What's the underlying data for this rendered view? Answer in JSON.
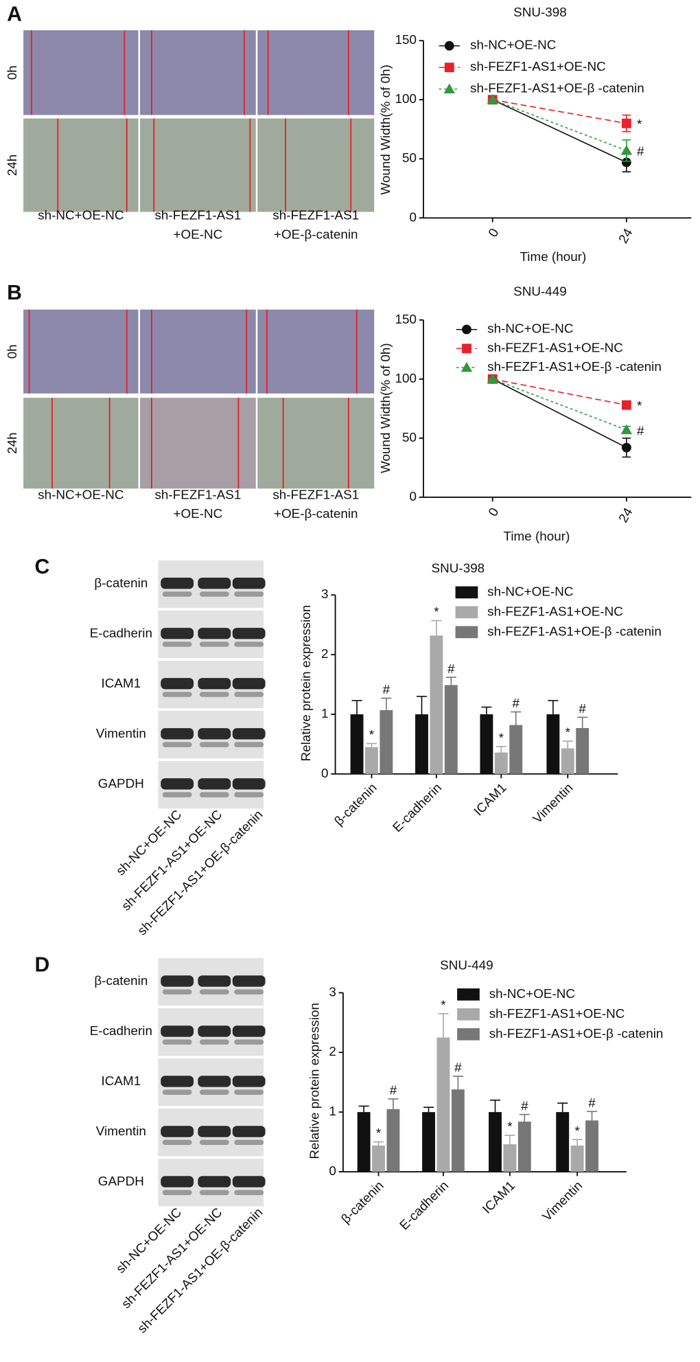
{
  "panels": [
    {
      "label": "A",
      "micro_rows": [
        "0h",
        "24h"
      ],
      "micro_captions": [
        [
          "sh-NC+OE-NC"
        ],
        [
          "sh-FEZF1-AS1",
          "+OE-NC"
        ],
        [
          "sh-FEZF1-AS1",
          "+OE-β-catenin"
        ]
      ]
    },
    {
      "label": "B",
      "micro_rows": [
        "0h",
        "24h"
      ],
      "micro_captions": [
        [
          "sh-NC+OE-NC"
        ],
        [
          "sh-FEZF1-AS1",
          "+OE-NC"
        ],
        [
          "sh-FEZF1-AS1",
          "+OE-β-catenin"
        ]
      ]
    },
    {
      "label": "C",
      "blot_proteins": [
        "β-catenin",
        "E-cadherin",
        "ICAM1",
        "Vimentin",
        "GAPDH"
      ],
      "blot_lanes": [
        "sh-NC+OE-NC",
        "sh-FEZF1-AS1+OE-NC",
        "sh-FEZF1-AS1+OE-β-catenin"
      ]
    },
    {
      "label": "D",
      "blot_proteins": [
        "β-catenin",
        "E-cadherin",
        "ICAM1",
        "Vimentin",
        "GAPDH"
      ],
      "blot_lanes": [
        "sh-NC+OE-NC",
        "sh-FEZF1-AS1+OE-NC",
        "sh-FEZF1-AS1+OE-β-catenin"
      ]
    }
  ],
  "chart_data": [
    {
      "type": "line",
      "title": "SNU-398",
      "x_label": "Time (hour)",
      "y_label": "Wound Width(% of 0h)",
      "categories": [
        "0",
        "24"
      ],
      "ylim": [
        0,
        150
      ],
      "yticks": [
        0,
        50,
        100,
        150
      ],
      "series": [
        {
          "name": "sh-NC+OE-NC",
          "color": "#111111",
          "marker": "circle",
          "line_style": "solid",
          "values": [
            100,
            47
          ],
          "errors": [
            0,
            8
          ],
          "annotations": [
            null,
            null
          ]
        },
        {
          "name": "sh-FEZF1-AS1+OE-NC",
          "color": "#e8202a",
          "marker": "square",
          "line_style": "dashed",
          "values": [
            100,
            80
          ],
          "errors": [
            0,
            7
          ],
          "annotations": [
            null,
            "*"
          ]
        },
        {
          "name": "sh-FEZF1-AS1+OE-β -catenin",
          "color": "#2e9a3c",
          "marker": "triangle",
          "line_style": "dotted",
          "values": [
            100,
            57
          ],
          "errors": [
            0,
            9
          ],
          "annotations": [
            null,
            "#"
          ]
        }
      ]
    },
    {
      "type": "line",
      "title": "SNU-449",
      "x_label": "Time (hour)",
      "y_label": "Wound Width(% of 0h)",
      "categories": [
        "0",
        "24"
      ],
      "ylim": [
        0,
        150
      ],
      "yticks": [
        0,
        50,
        100,
        150
      ],
      "series": [
        {
          "name": "sh-NC+OE-NC",
          "color": "#111111",
          "marker": "circle",
          "line_style": "solid",
          "values": [
            100,
            42
          ],
          "errors": [
            0,
            8
          ],
          "annotations": [
            null,
            null
          ]
        },
        {
          "name": "sh-FEZF1-AS1+OE-NC",
          "color": "#e8202a",
          "marker": "square",
          "line_style": "dashed",
          "values": [
            100,
            78
          ],
          "errors": [
            0,
            2
          ],
          "annotations": [
            null,
            "*"
          ]
        },
        {
          "name": "sh-FEZF1-AS1+OE-β -catenin",
          "color": "#2e9a3c",
          "marker": "triangle",
          "line_style": "dotted",
          "values": [
            100,
            57
          ],
          "errors": [
            0,
            3
          ],
          "annotations": [
            null,
            "#"
          ]
        }
      ]
    },
    {
      "type": "bar",
      "title": "SNU-398",
      "y_label": "Relative protein expression",
      "categories": [
        "β-catenin",
        "E-cadherin",
        "ICAM1",
        "Vimentin"
      ],
      "ylim": [
        0,
        3
      ],
      "yticks": [
        0,
        1,
        2,
        3
      ],
      "series": [
        {
          "name": "sh-NC+OE-NC",
          "color": "#111111",
          "values": [
            1,
            1,
            1,
            1
          ],
          "errors": [
            0.23,
            0.3,
            0.12,
            0.23
          ],
          "annotations": [
            null,
            null,
            null,
            null
          ]
        },
        {
          "name": "sh-FEZF1-AS1+OE-NC",
          "color": "#a9a9a9",
          "values": [
            0.45,
            2.32,
            0.36,
            0.43
          ],
          "errors": [
            0.06,
            0.25,
            0.1,
            0.12
          ],
          "annotations": [
            "*",
            "*",
            "*",
            "*"
          ]
        },
        {
          "name": "sh-FEZF1-AS1+OE-β -catenin",
          "color": "#777777",
          "values": [
            1.07,
            1.49,
            0.82,
            0.77
          ],
          "errors": [
            0.2,
            0.13,
            0.22,
            0.18
          ],
          "annotations": [
            "#",
            "#",
            "#",
            "#"
          ]
        }
      ]
    },
    {
      "type": "bar",
      "title": "SNU-449",
      "y_label": "Relative protein expression",
      "categories": [
        "β-catenin",
        "E-cadherin",
        "ICAM1",
        "Vimentin"
      ],
      "ylim": [
        0,
        3
      ],
      "yticks": [
        0,
        1,
        2,
        3
      ],
      "series": [
        {
          "name": "sh-NC+OE-NC",
          "color": "#111111",
          "values": [
            1,
            1,
            1,
            1
          ],
          "errors": [
            0.1,
            0.08,
            0.2,
            0.15
          ],
          "annotations": [
            null,
            null,
            null,
            null
          ]
        },
        {
          "name": "sh-FEZF1-AS1+OE-NC",
          "color": "#a9a9a9",
          "values": [
            0.44,
            2.25,
            0.46,
            0.44
          ],
          "errors": [
            0.06,
            0.4,
            0.15,
            0.1
          ],
          "annotations": [
            "*",
            "*",
            "*",
            "*"
          ]
        },
        {
          "name": "sh-FEZF1-AS1+OE-β -catenin",
          "color": "#777777",
          "values": [
            1.05,
            1.38,
            0.84,
            0.86
          ],
          "errors": [
            0.17,
            0.22,
            0.12,
            0.15
          ],
          "annotations": [
            "#",
            "#",
            "#",
            "#"
          ]
        }
      ]
    }
  ]
}
